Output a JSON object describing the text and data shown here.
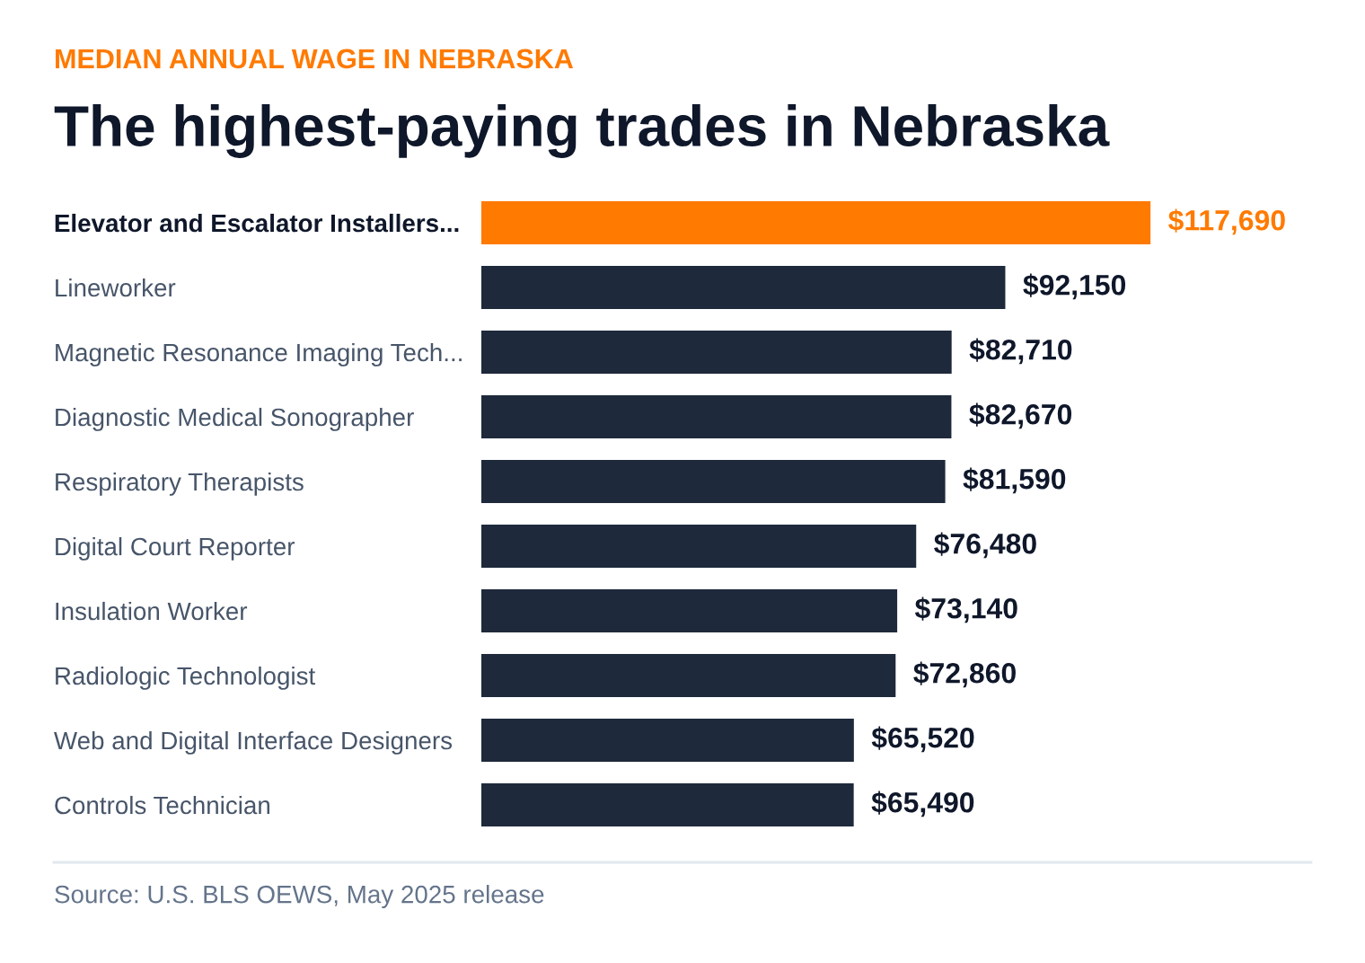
{
  "chart_data": {
    "type": "bar",
    "orientation": "horizontal",
    "title": "The highest-paying trades in Nebraska",
    "subtitle": "MEDIAN ANNUAL WAGE IN NEBRASKA",
    "categories": [
      "Elevator and Escalator Installers...",
      "Lineworker",
      "Magnetic Resonance Imaging Tech...",
      "Diagnostic Medical Sonographer",
      "Respiratory Therapists",
      "Digital Court Reporter",
      "Insulation Worker",
      "Radiologic Technologist",
      "Web and Digital Interface Designers",
      "Controls Technician"
    ],
    "values": [
      117690,
      92150,
      82710,
      82670,
      81590,
      76480,
      73140,
      72860,
      65520,
      65490
    ],
    "value_labels": [
      "$117,690",
      "$92,150",
      "$82,710",
      "$82,670",
      "$81,590",
      "$76,480",
      "$73,140",
      "$72,860",
      "$65,520",
      "$65,490"
    ],
    "colors": [
      "#ff7a00",
      "#1e293b",
      "#1e293b",
      "#1e293b",
      "#1e293b",
      "#1e293b",
      "#1e293b",
      "#1e293b",
      "#1e293b",
      "#1e293b"
    ],
    "annotations": [
      "Source: U.S. BLS OEWS, May 2025 release"
    ],
    "grid": false,
    "legend": false
  }
}
